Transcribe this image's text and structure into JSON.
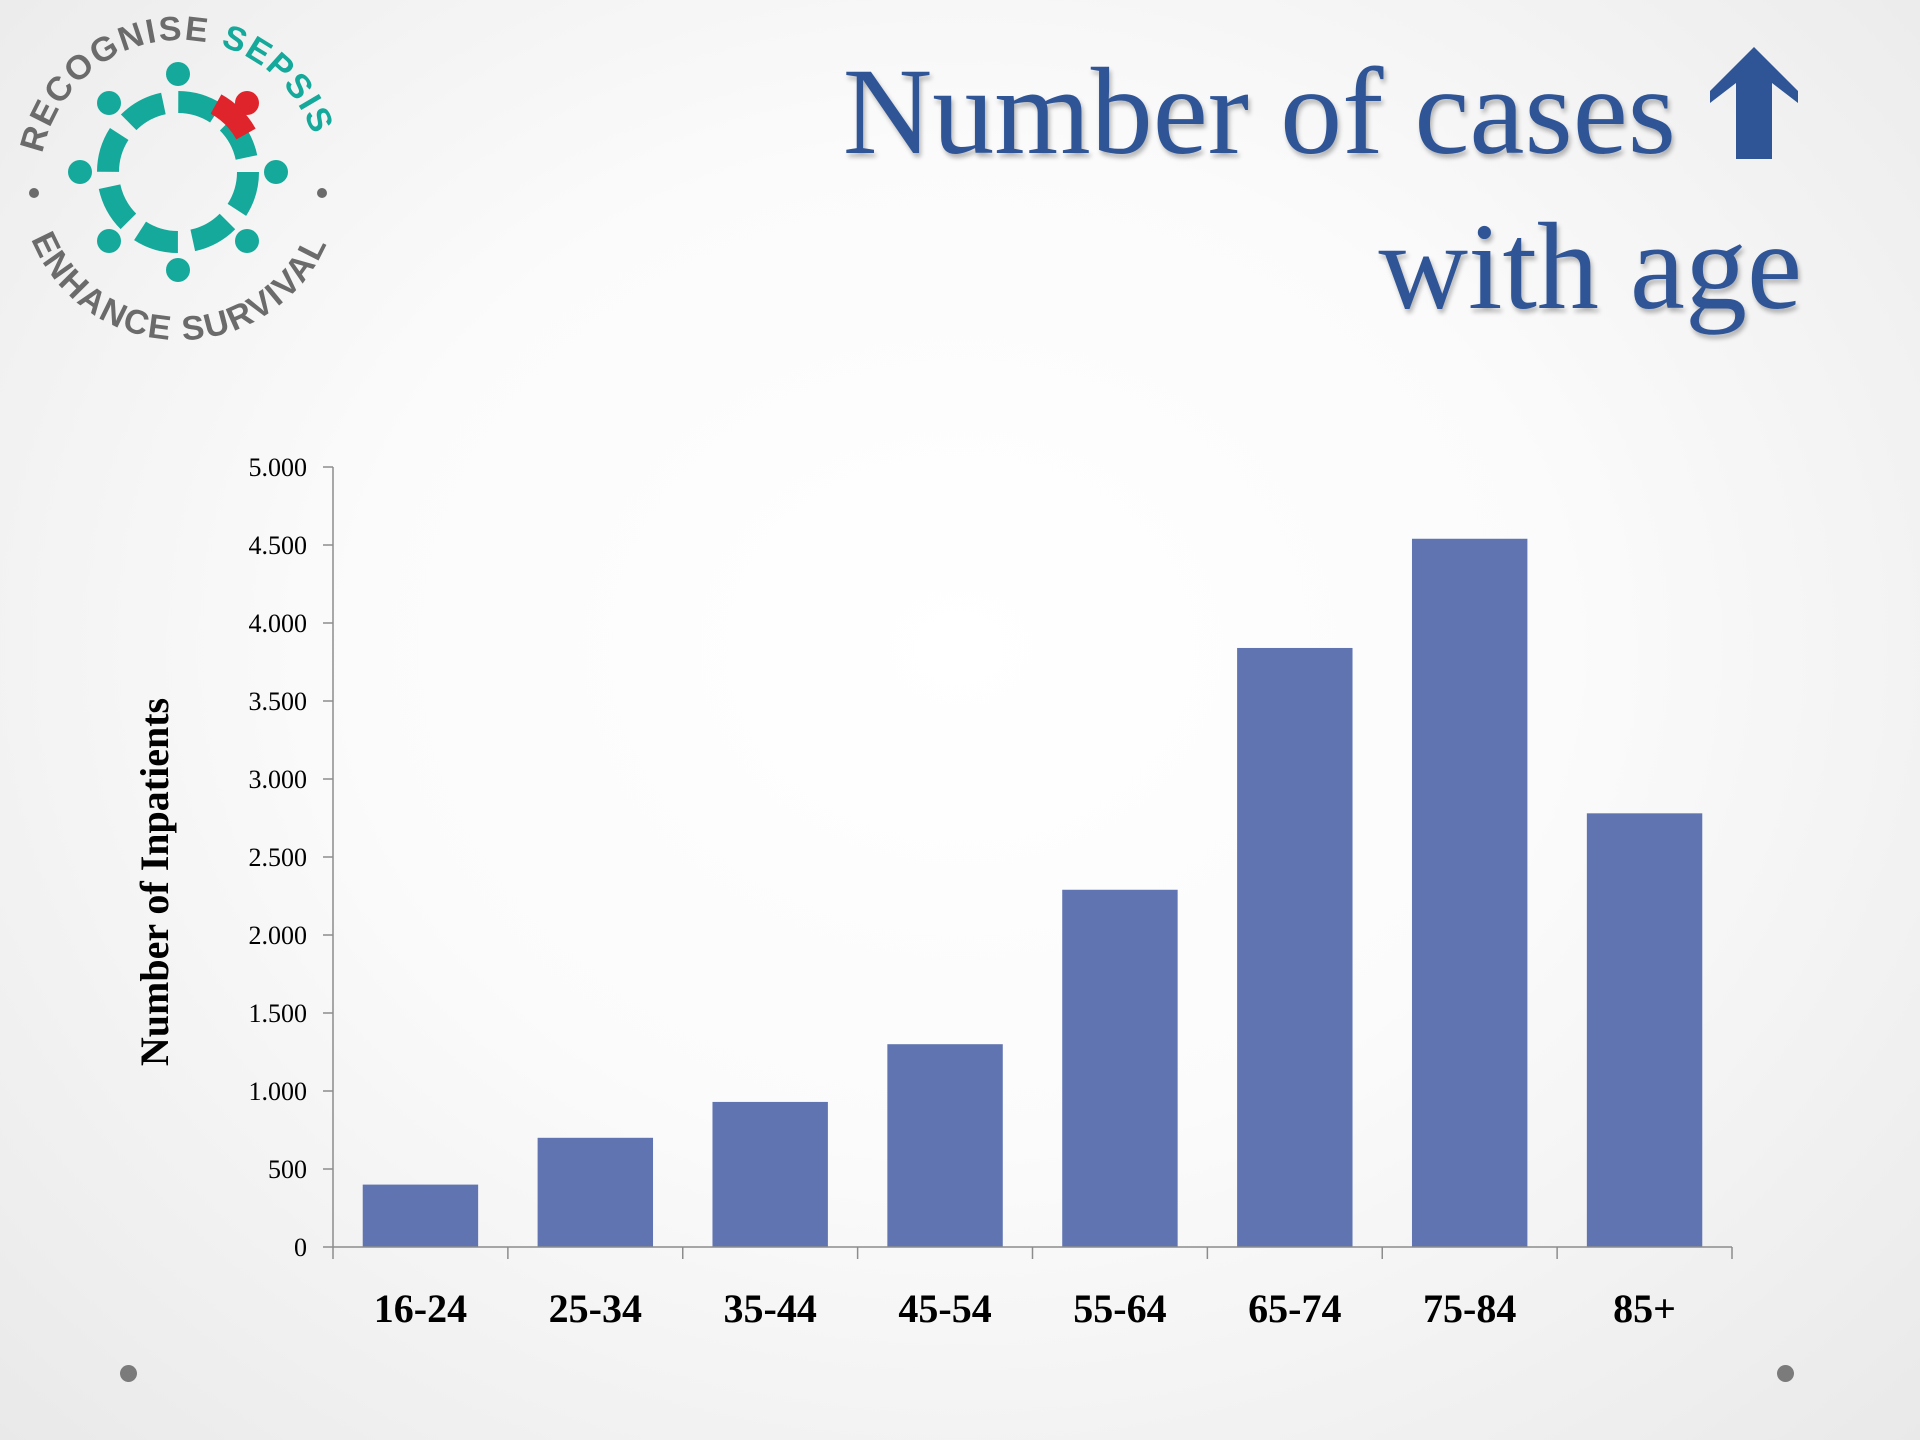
{
  "logo": {
    "text_top_grey": "RECOGNISE",
    "text_top_teal": "SEPSIS",
    "text_bottom": "ENHANCE SURVIVAL",
    "colors": {
      "grey": "#6b6b6b",
      "teal": "#14a99a",
      "red": "#e0242b"
    }
  },
  "title": {
    "line1": "Number of cases",
    "line2": "with age",
    "arrow_icon": "up-arrow-icon",
    "color": "#2f5597"
  },
  "chart_data": {
    "type": "bar",
    "categories": [
      "16-24",
      "25-34",
      "35-44",
      "45-54",
      "55-64",
      "65-74",
      "75-84",
      "85+"
    ],
    "values": [
      400,
      700,
      930,
      1300,
      2290,
      3840,
      4540,
      2780
    ],
    "ylabel": "Number of Inpatients",
    "xlabel": "",
    "ylim": [
      0,
      5000
    ],
    "yticks": [
      0,
      500,
      1000,
      1500,
      2000,
      2500,
      3000,
      3500,
      4000,
      4500,
      5000
    ],
    "ytick_labels": [
      "0",
      "500",
      "1.000",
      "1.500",
      "2.000",
      "2.500",
      "3.000",
      "3.500",
      "4.000",
      "4.500",
      "5.000"
    ],
    "bar_color": "#6074b1",
    "grid": false
  }
}
